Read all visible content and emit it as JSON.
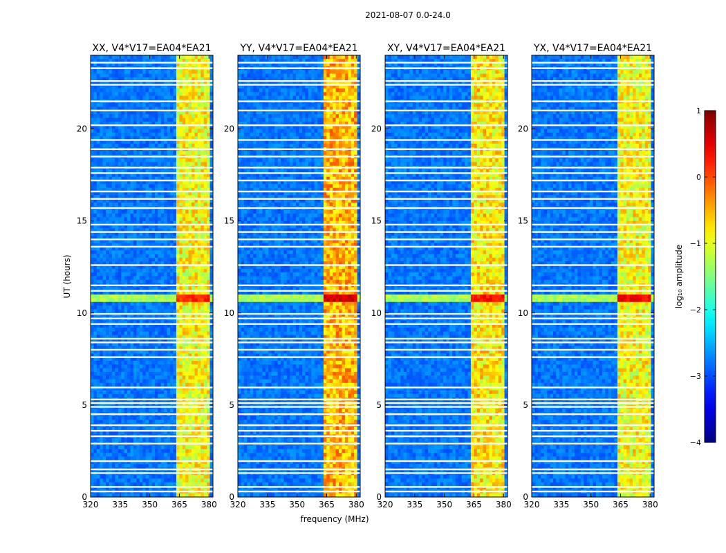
{
  "chart_data": {
    "type": "heatmap",
    "suptitle": "2021-08-07 0.0-24.0",
    "xlabel": "frequency (MHz)",
    "ylabel": "UT (hours)",
    "xlim": [
      320,
      382
    ],
    "ylim": [
      0,
      24
    ],
    "x_ticks": [
      320,
      335,
      350,
      365,
      380
    ],
    "y_ticks": [
      0,
      5,
      10,
      15,
      20
    ],
    "panels": [
      {
        "title": "XX, V4*V17=EA04*EA21",
        "band_level": 0.62,
        "rfi_flare_level": 0.8
      },
      {
        "title": "YY, V4*V17=EA04*EA21",
        "band_level": 0.7,
        "rfi_flare_level": 0.88
      },
      {
        "title": "XY, V4*V17=EA04*EA21",
        "band_level": 0.64,
        "rfi_flare_level": 0.82
      },
      {
        "title": "YX, V4*V17=EA04*EA21",
        "band_level": 0.62,
        "rfi_flare_level": 0.84
      }
    ],
    "bright_band_mhz": [
      363,
      380
    ],
    "flare_ut_hours": [
      10.65,
      10.9
    ],
    "flagged_ut_hours": [
      0.3,
      0.55,
      1.3,
      1.5,
      1.95,
      2.9,
      3.3,
      3.6,
      3.9,
      4.5,
      4.9,
      5.1,
      5.3,
      5.95,
      7.6,
      8.0,
      8.4,
      8.6,
      9.4,
      9.7,
      9.95,
      11.2,
      11.5,
      12.6,
      13.6,
      14.0,
      14.4,
      14.8,
      15.7,
      16.2,
      16.6,
      17.2,
      17.6,
      17.9,
      18.5,
      18.9,
      19.4,
      20.2,
      21.0,
      21.5,
      22.4,
      22.6,
      23.3,
      23.6
    ],
    "colorbar": {
      "label": "log₁₀ amplitude",
      "range": [
        -4,
        1
      ],
      "ticks": [
        -4,
        -3,
        -2,
        -1,
        0,
        1
      ],
      "tick_labels": [
        "−4",
        "−3",
        "−2",
        "−1",
        "0",
        "1"
      ],
      "colormap": "jet"
    }
  }
}
